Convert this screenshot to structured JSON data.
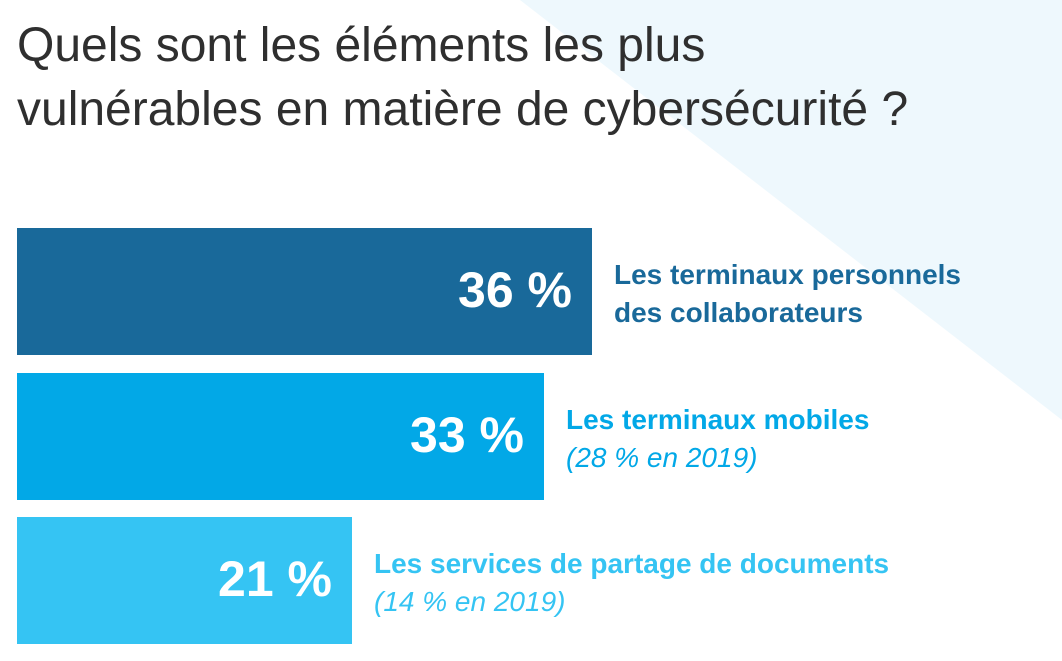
{
  "title": {
    "line1": "Quels sont les éléments les plus",
    "line2": "vulnérables en matière de cybersécurité ?"
  },
  "colors": {
    "title_text": "#2f2f2f",
    "background_accent": "#eef8fd",
    "bar_1": "#19699a",
    "bar_2": "#02a8e7",
    "bar_3": "#35c4f3",
    "bar_value_text": "#ffffff"
  },
  "chart_data": {
    "type": "bar",
    "orientation": "horizontal",
    "xlim": [
      0,
      36
    ],
    "bars": [
      {
        "value": 36,
        "value_label": "36 %",
        "label": "Les terminaux personnels des collaborateurs",
        "label_lines": [
          "Les terminaux personnels",
          "des collaborateurs"
        ],
        "note": ""
      },
      {
        "value": 33,
        "value_label": "33 %",
        "label": "Les terminaux mobiles",
        "label_lines": [
          "Les terminaux mobiles"
        ],
        "note": "(28 % en 2019)"
      },
      {
        "value": 21,
        "value_label": "21 %",
        "label": "Les services de partage de documents",
        "label_lines": [
          "Les services de partage de documents"
        ],
        "note": "(14 % en 2019)"
      }
    ]
  }
}
